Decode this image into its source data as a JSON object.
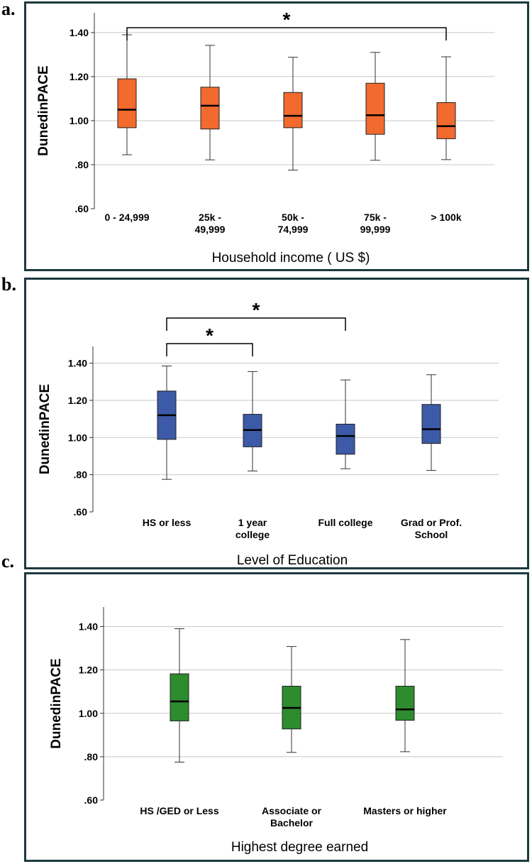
{
  "panels": [
    {
      "letter": "a.",
      "chart_data": {
        "type": "boxplot",
        "ylabel": "DunedinPACE",
        "xlabel": "Household income ( US $)",
        "ylim": [
          0.6,
          1.49
        ],
        "ytick_values": [
          0.6,
          0.8,
          1.0,
          1.2,
          1.4
        ],
        "ytick_labels": [
          ".60",
          ".80",
          "1.00",
          "1.20",
          "1.40"
        ],
        "grid": true,
        "box_color": "#f26a2e",
        "categories": [
          {
            "line1": "0 - 24,999",
            "line2": ""
          },
          {
            "line1": "25k -",
            "line2": "49,999"
          },
          {
            "line1": "50k -",
            "line2": "74,999"
          },
          {
            "line1": "75k -",
            "line2": "99,999"
          },
          {
            "line1": "> 100k",
            "line2": ""
          }
        ],
        "boxes": [
          {
            "min": 0.845,
            "q1": 0.968,
            "median": 1.05,
            "q3": 1.19,
            "max": 1.39
          },
          {
            "min": 0.822,
            "q1": 0.962,
            "median": 1.068,
            "q3": 1.152,
            "max": 1.342
          },
          {
            "min": 0.775,
            "q1": 0.968,
            "median": 1.022,
            "q3": 1.128,
            "max": 1.288
          },
          {
            "min": 0.82,
            "q1": 0.938,
            "median": 1.025,
            "q3": 1.17,
            "max": 1.31
          },
          {
            "min": 0.823,
            "q1": 0.918,
            "median": 0.975,
            "q3": 1.082,
            "max": 1.29
          }
        ],
        "significance": [
          {
            "from": 0,
            "to": 4,
            "label": "*",
            "level": 0
          }
        ]
      }
    },
    {
      "letter": "b.",
      "chart_data": {
        "type": "boxplot",
        "ylabel": "DunedinPACE",
        "xlabel": "Level of Education",
        "ylim": [
          0.6,
          1.49
        ],
        "ytick_values": [
          0.6,
          0.8,
          1.0,
          1.2,
          1.4
        ],
        "ytick_labels": [
          ".60",
          ".80",
          "1.00",
          "1.20",
          "1.40"
        ],
        "grid": true,
        "box_color": "#3d5aa8",
        "categories": [
          {
            "line1": "HS or less",
            "line2": ""
          },
          {
            "line1": "1 year",
            "line2": "college"
          },
          {
            "line1": "Full college",
            "line2": ""
          },
          {
            "line1": "Grad or Prof.",
            "line2": "School"
          }
        ],
        "boxes": [
          {
            "min": 0.775,
            "q1": 0.99,
            "median": 1.12,
            "q3": 1.25,
            "max": 1.385
          },
          {
            "min": 0.82,
            "q1": 0.95,
            "median": 1.04,
            "q3": 1.125,
            "max": 1.355
          },
          {
            "min": 0.832,
            "q1": 0.91,
            "median": 1.008,
            "q3": 1.072,
            "max": 1.31
          },
          {
            "min": 0.823,
            "q1": 0.968,
            "median": 1.045,
            "q3": 1.178,
            "max": 1.338
          }
        ],
        "significance": [
          {
            "from": 0,
            "to": 1,
            "label": "*",
            "level": 0
          },
          {
            "from": 0,
            "to": 2,
            "label": "*",
            "level": 1
          }
        ]
      }
    },
    {
      "letter": "c.",
      "chart_data": {
        "type": "boxplot",
        "ylabel": "DunedinPACE",
        "xlabel": "Highest degree earned",
        "ylim": [
          0.6,
          1.49
        ],
        "ytick_values": [
          0.6,
          0.8,
          1.0,
          1.2,
          1.4
        ],
        "ytick_labels": [
          ".60",
          ".80",
          "1.00",
          "1.20",
          "1.40"
        ],
        "grid": true,
        "box_color": "#2e8b2e",
        "categories": [
          {
            "line1": "HS /GED or Less",
            "line2": ""
          },
          {
            "line1": "Associate or",
            "line2": "Bachelor"
          },
          {
            "line1": "Masters or higher",
            "line2": ""
          }
        ],
        "boxes": [
          {
            "min": 0.775,
            "q1": 0.965,
            "median": 1.055,
            "q3": 1.182,
            "max": 1.39
          },
          {
            "min": 0.82,
            "q1": 0.928,
            "median": 1.025,
            "q3": 1.125,
            "max": 1.308
          },
          {
            "min": 0.823,
            "q1": 0.968,
            "median": 1.018,
            "q3": 1.125,
            "max": 1.34
          }
        ],
        "significance": []
      }
    }
  ]
}
